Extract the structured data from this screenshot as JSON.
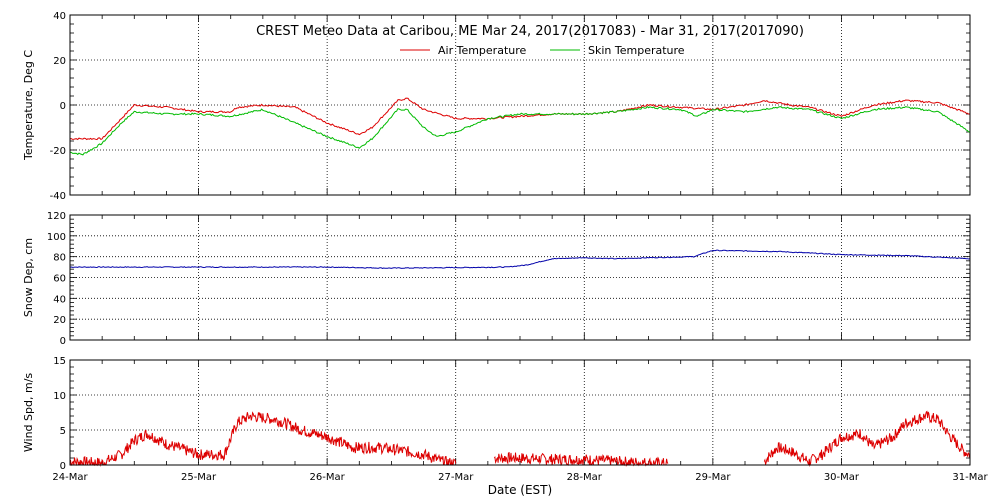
{
  "chart_data": {
    "title": "CREST Meteo Data at Caribou, ME   Mar 24, 2017(2017083) - Mar 31, 2017(2017090)",
    "xlabel": "Date (EST)",
    "x_tick_labels": [
      "24-Mar",
      "25-Mar",
      "26-Mar",
      "27-Mar",
      "28-Mar",
      "29-Mar",
      "30-Mar",
      "31-Mar"
    ],
    "xlim": [
      0,
      7
    ],
    "colors": {
      "air": "#dd0000",
      "skin": "#00bb00",
      "snow": "#0000aa",
      "wind": "#dd0000"
    },
    "panels": [
      {
        "type": "line",
        "ylabel": "Temperature, Deg C",
        "ylim": [
          -40,
          40
        ],
        "yticks": [
          "-40",
          "-20",
          "0",
          "20",
          "40"
        ],
        "legend": "top-center",
        "series": [
          {
            "name": "Air Temperature",
            "color_key": "air",
            "points": [
              [
                0,
                -15
              ],
              [
                0.25,
                -15
              ],
              [
                0.4,
                -6
              ],
              [
                0.5,
                0
              ],
              [
                0.75,
                -1
              ],
              [
                1,
                -3
              ],
              [
                1.25,
                -3
              ],
              [
                1.3,
                -1
              ],
              [
                1.5,
                0
              ],
              [
                1.75,
                -1
              ],
              [
                2,
                -8
              ],
              [
                2.25,
                -13
              ],
              [
                2.35,
                -10
              ],
              [
                2.55,
                2
              ],
              [
                2.62,
                3
              ],
              [
                2.75,
                -2
              ],
              [
                3,
                -6
              ],
              [
                3.25,
                -6
              ],
              [
                3.5,
                -5
              ],
              [
                3.75,
                -4
              ],
              [
                4,
                -4
              ],
              [
                4.25,
                -3
              ],
              [
                4.5,
                0
              ],
              [
                4.75,
                -1
              ],
              [
                5,
                -2
              ],
              [
                5.25,
                0
              ],
              [
                5.4,
                2
              ],
              [
                5.6,
                0
              ],
              [
                5.75,
                -1
              ],
              [
                6,
                -5
              ],
              [
                6.25,
                0
              ],
              [
                6.5,
                2
              ],
              [
                6.75,
                1
              ],
              [
                7,
                -4
              ]
            ]
          },
          {
            "name": "Skin Temperature",
            "color_key": "skin",
            "points": [
              [
                0,
                -21
              ],
              [
                0.1,
                -22
              ],
              [
                0.25,
                -17
              ],
              [
                0.4,
                -8
              ],
              [
                0.5,
                -3
              ],
              [
                0.75,
                -4
              ],
              [
                1,
                -4
              ],
              [
                1.25,
                -5
              ],
              [
                1.5,
                -2
              ],
              [
                1.75,
                -8
              ],
              [
                2,
                -14
              ],
              [
                2.25,
                -19
              ],
              [
                2.35,
                -15
              ],
              [
                2.55,
                -2
              ],
              [
                2.62,
                -2
              ],
              [
                2.75,
                -10
              ],
              [
                2.85,
                -14
              ],
              [
                3,
                -12
              ],
              [
                3.25,
                -6
              ],
              [
                3.5,
                -4
              ],
              [
                3.75,
                -4
              ],
              [
                4,
                -4
              ],
              [
                4.25,
                -3
              ],
              [
                4.5,
                -1
              ],
              [
                4.75,
                -2
              ],
              [
                4.88,
                -5
              ],
              [
                5,
                -2
              ],
              [
                5.25,
                -3
              ],
              [
                5.5,
                -1
              ],
              [
                5.75,
                -2
              ],
              [
                6,
                -6
              ],
              [
                6.25,
                -2
              ],
              [
                6.5,
                -1
              ],
              [
                6.75,
                -3
              ],
              [
                7,
                -12
              ]
            ]
          }
        ]
      },
      {
        "type": "line",
        "ylabel": "Snow Dep, cm",
        "ylim": [
          0,
          120
        ],
        "yticks": [
          "0",
          "20",
          "40",
          "60",
          "80",
          "100",
          "120"
        ],
        "series": [
          {
            "color_key": "snow",
            "points": [
              [
                0,
                70
              ],
              [
                1,
                70
              ],
              [
                2,
                70
              ],
              [
                2.5,
                69
              ],
              [
                3,
                69.5
              ],
              [
                3.4,
                70
              ],
              [
                3.55,
                72
              ],
              [
                3.75,
                78
              ],
              [
                4,
                79
              ],
              [
                4.25,
                78
              ],
              [
                4.5,
                79
              ],
              [
                4.85,
                80
              ],
              [
                5,
                86
              ],
              [
                5.5,
                85
              ],
              [
                6,
                82
              ],
              [
                6.5,
                81
              ],
              [
                7,
                78
              ]
            ]
          }
        ]
      },
      {
        "type": "line",
        "ylabel": "Wind Spd, m/s",
        "ylim": [
          0,
          15
        ],
        "yticks": [
          "0",
          "5",
          "10",
          "15"
        ],
        "series": [
          {
            "color_key": "wind",
            "segments": [
              [
                [
                  0,
                  0.5
                ],
                [
                  0.25,
                  0.3
                ],
                [
                  0.4,
                  1.5
                ],
                [
                  0.5,
                  3.5
                ],
                [
                  0.6,
                  4.5
                ],
                [
                  0.75,
                  3
                ],
                [
                  1,
                  1.5
                ],
                [
                  1.2,
                  1.5
                ],
                [
                  1.3,
                  6
                ],
                [
                  1.4,
                  7
                ],
                [
                  1.6,
                  6.5
                ],
                [
                  1.8,
                  5
                ],
                [
                  2,
                  4
                ],
                [
                  2.2,
                  2.5
                ],
                [
                  2.4,
                  2.5
                ],
                [
                  2.6,
                  2
                ],
                [
                  2.75,
                  1.5
                ],
                [
                  2.9,
                  0.5
                ],
                [
                  3,
                  0.2
                ]
              ],
              [
                [
                  3.3,
                  1
                ],
                [
                  3.5,
                  1
                ],
                [
                  3.75,
                  0.8
                ],
                [
                  4,
                  0.8
                ],
                [
                  4.25,
                  0.5
                ],
                [
                  4.5,
                  0.3
                ],
                [
                  4.65,
                  0.2
                ]
              ],
              [
                [
                  5.4,
                  0.5
                ],
                [
                  5.5,
                  2.5
                ],
                [
                  5.6,
                  2
                ],
                [
                  5.75,
                  0.5
                ],
                [
                  5.85,
                  1.5
                ],
                [
                  6,
                  4
                ],
                [
                  6.15,
                  4.5
                ],
                [
                  6.25,
                  2.5
                ],
                [
                  6.4,
                  4
                ],
                [
                  6.5,
                  6
                ],
                [
                  6.65,
                  7
                ],
                [
                  6.75,
                  6.5
                ],
                [
                  6.85,
                  4
                ],
                [
                  6.95,
                  2
                ],
                [
                  7,
                  1.5
                ]
              ]
            ]
          }
        ]
      }
    ]
  }
}
